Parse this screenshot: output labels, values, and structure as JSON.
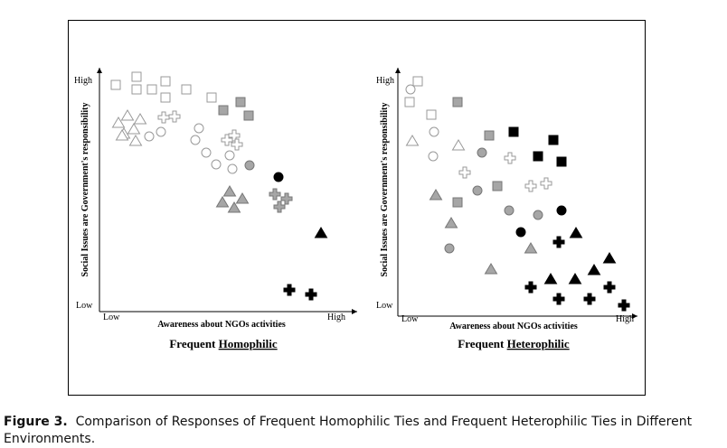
{
  "figure": {
    "panels": [
      {
        "y_axis_label": "Social Issues are Government's responsibility",
        "y_high": "High",
        "y_low": "Low",
        "x_low": "Low",
        "x_axis_label": "Awareness about NGOs activities",
        "x_high": "High",
        "title_prefix": "Frequent",
        "title_emphasis": "Homophilic"
      },
      {
        "y_axis_label": "Social Issues are Government's responsibility",
        "y_high": "High",
        "y_low": "Low",
        "x_low": "Low",
        "x_axis_label": "Awareness about NGOs activities",
        "x_high": "High",
        "title_prefix": "Frequent",
        "title_emphasis": "Heterophilic"
      }
    ]
  },
  "caption": {
    "label": "Figure 3.",
    "text": "Comparison of Responses of Frequent Homophilic Ties and Frequent Heterophilic Ties in Different Environments."
  }
}
